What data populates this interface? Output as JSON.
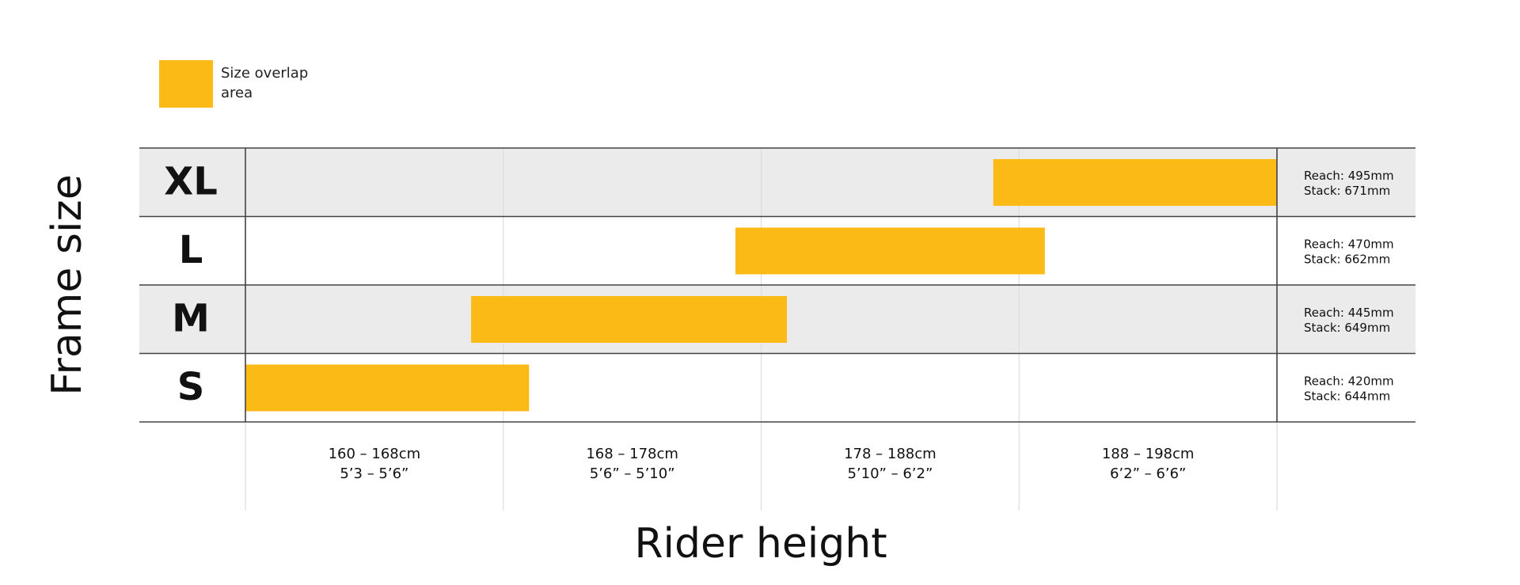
{
  "chart_data": {
    "type": "range-bar",
    "legend": {
      "label": "Size overlap area",
      "color": "#fbba16"
    },
    "y_label": "Frame size",
    "x_label": "Rider height",
    "categories": [
      [
        "160 – 168cm",
        "5’3 – 5’6”"
      ],
      [
        "168 – 178cm",
        "5’6” – 5’10”"
      ],
      [
        "178 – 188cm",
        "5’10” – 6’2”"
      ],
      [
        "188 – 198cm",
        "6’2” – 6’6”"
      ]
    ],
    "xlim": [
      160,
      198
    ],
    "xticks": [
      160,
      168,
      178,
      188,
      198
    ],
    "grid": true,
    "bar_color": "#fbba16",
    "series": [
      {
        "name": "XL",
        "start": 187,
        "end": 198,
        "reach": "Reach: 495mm",
        "stack": "Stack: 671mm",
        "shaded": true
      },
      {
        "name": "L",
        "start": 177,
        "end": 189,
        "reach": "Reach: 470mm",
        "stack": "Stack: 662mm",
        "shaded": false
      },
      {
        "name": "M",
        "start": 167,
        "end": 179,
        "reach": "Reach: 445mm",
        "stack": "Stack: 649mm",
        "shaded": true
      },
      {
        "name": "S",
        "start": 160,
        "end": 169,
        "reach": "Reach: 420mm",
        "stack": "Stack: 644mm",
        "shaded": false
      }
    ]
  }
}
